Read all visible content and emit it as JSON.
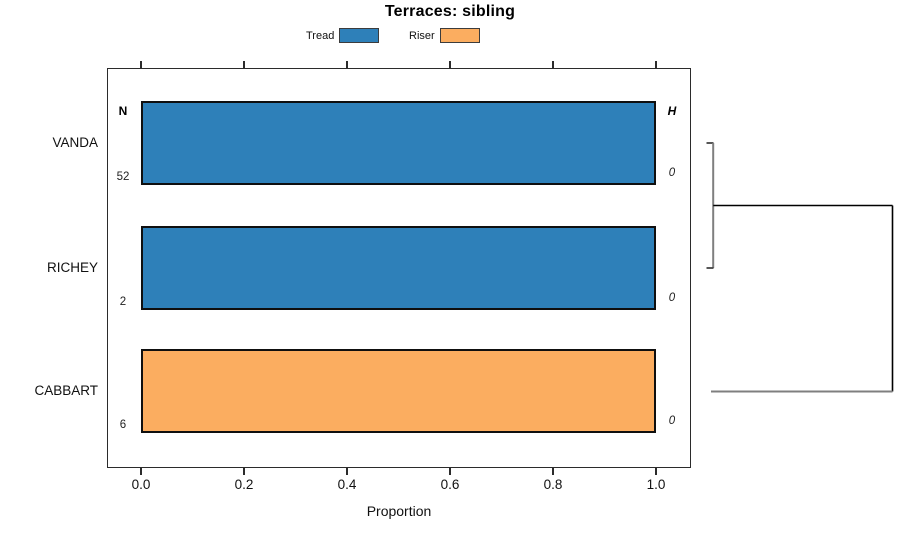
{
  "chart_data": {
    "type": "bar",
    "orientation": "horizontal",
    "title": "Terraces: sibling",
    "xlabel": "Proportion",
    "xlim": [
      0,
      1.08
    ],
    "xticks": [
      "0.0",
      "0.2",
      "0.4",
      "0.6",
      "0.8",
      "1.0"
    ],
    "grid": false,
    "legend_position": "top-center",
    "legend": [
      {
        "label": "Tread",
        "color": "#2E80B9"
      },
      {
        "label": "Riser",
        "color": "#FBAD60"
      }
    ],
    "left_column_header": "N",
    "right_column_header": "H",
    "rows": [
      {
        "label": "VANDA",
        "series": "Tread",
        "proportion": 1.0,
        "color": "#2E80B9",
        "n": "52",
        "h": "0"
      },
      {
        "label": "RICHEY",
        "series": "Tread",
        "proportion": 1.0,
        "color": "#2E80B9",
        "n": "2",
        "h": "0"
      },
      {
        "label": "CABBART",
        "series": "Riser",
        "proportion": 1.0,
        "color": "#FBAD60",
        "n": "6",
        "h": "0"
      }
    ],
    "dendrogram": {
      "newick": "((VANDA,RICHEY),CABBART)",
      "leaf_line_color": "#7f7f7f",
      "join_line_color": "#000000"
    }
  }
}
